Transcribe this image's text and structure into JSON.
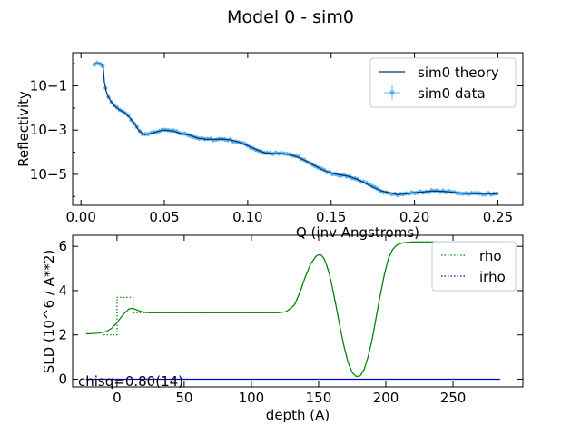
{
  "figure": {
    "suptitle": "Model 0 - sim0"
  },
  "chart_data": [
    {
      "type": "line",
      "title": "",
      "xlabel": "Q (inv Angstroms)",
      "ylabel": "Reflectivity",
      "xlim": [
        -0.005,
        0.265
      ],
      "ylim_log10": [
        -6.4,
        0.5
      ],
      "yscale": "log",
      "xticks": [
        0.0,
        0.05,
        0.1,
        0.15,
        0.2,
        0.25
      ],
      "xtick_labels": [
        "0.00",
        "0.05",
        "0.10",
        "0.15",
        "0.20",
        "0.25"
      ],
      "yticks_log10": [
        -5,
        -3,
        -1
      ],
      "ytick_labels": [
        "10−5",
        "10−3",
        "10−1"
      ],
      "legend_position": "upper-right",
      "series": [
        {
          "name": "sim0 theory",
          "style": "line",
          "color": "#08306b",
          "x": [
            0.008,
            0.012,
            0.013,
            0.0135,
            0.014,
            0.015,
            0.016,
            0.018,
            0.02,
            0.023,
            0.026,
            0.029,
            0.032,
            0.035,
            0.038,
            0.042,
            0.046,
            0.05,
            0.055,
            0.06,
            0.065,
            0.07,
            0.075,
            0.08,
            0.085,
            0.09,
            0.095,
            0.1,
            0.105,
            0.11,
            0.115,
            0.12,
            0.125,
            0.13,
            0.135,
            0.14,
            0.145,
            0.15,
            0.155,
            0.16,
            0.165,
            0.17,
            0.175,
            0.18,
            0.185,
            0.19,
            0.195,
            0.2,
            0.205,
            0.21,
            0.215,
            0.22,
            0.225,
            0.23,
            0.235,
            0.24,
            0.245,
            0.25
          ],
          "log10_y": [
            0.0,
            0.0,
            -0.05,
            -0.3,
            -0.8,
            -1.2,
            -1.45,
            -1.7,
            -1.9,
            -2.08,
            -2.2,
            -2.42,
            -2.7,
            -3.05,
            -3.2,
            -3.16,
            -3.06,
            -3.0,
            -3.04,
            -3.15,
            -3.22,
            -3.36,
            -3.42,
            -3.42,
            -3.4,
            -3.45,
            -3.55,
            -3.7,
            -3.88,
            -4.02,
            -4.06,
            -4.06,
            -4.1,
            -4.22,
            -4.4,
            -4.6,
            -4.8,
            -4.94,
            -5.02,
            -5.08,
            -5.2,
            -5.38,
            -5.58,
            -5.75,
            -5.83,
            -5.92,
            -5.88,
            -5.83,
            -5.8,
            -5.76,
            -5.76,
            -5.79,
            -5.83,
            -5.86,
            -5.87,
            -5.87,
            -5.88,
            -5.9
          ]
        },
        {
          "name": "sim0 data",
          "style": "errorbar-markers",
          "color": "#5ab4f0",
          "x_range": [
            0.008,
            0.251
          ],
          "follows": "sim0 theory"
        }
      ]
    },
    {
      "type": "line",
      "title": "",
      "xlabel": "depth (A)",
      "ylabel": "SLD (10^6 / A**2)",
      "xlim": [
        -33,
        302
      ],
      "ylim": [
        -0.35,
        6.5
      ],
      "xticks": [
        0,
        50,
        100,
        150,
        200,
        250
      ],
      "xtick_labels": [
        "0",
        "50",
        "100",
        "150",
        "200",
        "250"
      ],
      "yticks": [
        0,
        2,
        4,
        6
      ],
      "ytick_labels": [
        "0",
        "2",
        "4",
        "6"
      ],
      "legend_position": "upper-right",
      "annotation": "chisq=0.80(14)",
      "series": [
        {
          "name": "rho",
          "style": "solid",
          "color": "#008000",
          "x": [
            -23,
            -14,
            -8,
            -4,
            0,
            3,
            6,
            9,
            12,
            16,
            20,
            25,
            30,
            40,
            60,
            80,
            100,
            120,
            126,
            132,
            136,
            140,
            144,
            148,
            150,
            152,
            154,
            156,
            158,
            160,
            163,
            166,
            169,
            172,
            175,
            178,
            181,
            184,
            187,
            190,
            193,
            196,
            199,
            202,
            205,
            208,
            212,
            216,
            220,
            226,
            240,
            260,
            285
          ],
          "y": [
            2.05,
            2.08,
            2.15,
            2.3,
            2.55,
            2.8,
            3.0,
            3.18,
            3.2,
            3.1,
            3.02,
            3.0,
            3.0,
            3.0,
            3.0,
            3.0,
            3.0,
            3.0,
            3.05,
            3.35,
            3.9,
            4.6,
            5.2,
            5.55,
            5.62,
            5.6,
            5.45,
            5.15,
            4.75,
            4.2,
            3.3,
            2.35,
            1.45,
            0.75,
            0.3,
            0.12,
            0.15,
            0.45,
            1.05,
            1.85,
            2.85,
            3.85,
            4.75,
            5.45,
            5.85,
            6.05,
            6.15,
            6.18,
            6.2,
            6.2,
            6.2,
            6.2,
            6.2
          ]
        },
        {
          "name": "rho",
          "style": "dotted",
          "color": "#008000",
          "x": [
            -10,
            -10,
            0,
            0,
            12,
            12,
            40,
            60,
            100,
            120,
            126,
            132,
            136,
            140,
            144,
            148,
            150,
            152,
            154,
            156,
            158,
            160,
            163,
            166,
            169,
            172,
            175,
            178,
            181,
            184,
            187,
            190,
            193,
            196,
            199,
            202,
            205,
            208,
            212,
            216,
            220,
            226,
            240,
            260,
            285
          ],
          "y": [
            2.0,
            2.0,
            2.0,
            3.7,
            3.7,
            3.0,
            3.0,
            3.0,
            3.0,
            3.0,
            3.05,
            3.35,
            3.9,
            4.6,
            5.2,
            5.55,
            5.62,
            5.6,
            5.45,
            5.15,
            4.75,
            4.2,
            3.3,
            2.35,
            1.45,
            0.75,
            0.3,
            0.12,
            0.15,
            0.45,
            1.05,
            1.85,
            2.85,
            3.85,
            4.75,
            5.45,
            5.85,
            6.05,
            6.15,
            6.18,
            6.2,
            6.2,
            6.2,
            6.2,
            6.2
          ]
        },
        {
          "name": "irho",
          "style": "solid+dotted",
          "color": "#0000cc",
          "x": [
            -23,
            285
          ],
          "y": [
            0.0,
            0.0
          ]
        }
      ]
    }
  ]
}
